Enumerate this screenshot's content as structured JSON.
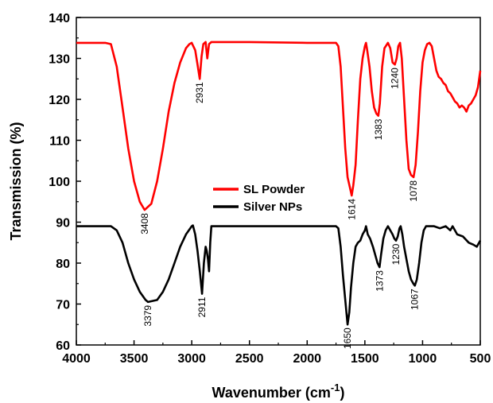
{
  "chart_data": {
    "type": "line",
    "title": "",
    "xlabel": "Wavenumber (cm",
    "xlabel_superscript": "-1",
    "xlabel_close": ")",
    "ylabel": "Transmission (%)",
    "xlim": [
      4000,
      500
    ],
    "ylim": [
      60,
      140
    ],
    "x_ticks": [
      4000,
      3500,
      3000,
      2500,
      2000,
      1500,
      1000,
      500
    ],
    "y_ticks": [
      60,
      70,
      80,
      90,
      100,
      110,
      120,
      130,
      140
    ],
    "grid": false,
    "legend_position": "center",
    "series": [
      {
        "name": "SL Powder",
        "color": "#ff0000",
        "points": [
          [
            4000,
            133.8
          ],
          [
            3750,
            133.8
          ],
          [
            3700,
            133.5
          ],
          [
            3650,
            128
          ],
          [
            3600,
            118
          ],
          [
            3550,
            108
          ],
          [
            3500,
            100
          ],
          [
            3450,
            95
          ],
          [
            3408,
            93
          ],
          [
            3350,
            94.5
          ],
          [
            3300,
            100
          ],
          [
            3250,
            108
          ],
          [
            3200,
            117
          ],
          [
            3150,
            124
          ],
          [
            3100,
            129
          ],
          [
            3050,
            132.5
          ],
          [
            3020,
            133.5
          ],
          [
            3000,
            133.8
          ],
          [
            2970,
            132
          ],
          [
            2950,
            128.5
          ],
          [
            2931,
            125
          ],
          [
            2915,
            130.5
          ],
          [
            2900,
            133.5
          ],
          [
            2880,
            134
          ],
          [
            2865,
            130
          ],
          [
            2850,
            133.5
          ],
          [
            2830,
            134
          ],
          [
            2500,
            134
          ],
          [
            2000,
            133.8
          ],
          [
            1750,
            133.8
          ],
          [
            1730,
            133
          ],
          [
            1710,
            128
          ],
          [
            1690,
            118
          ],
          [
            1670,
            108
          ],
          [
            1650,
            101
          ],
          [
            1630,
            98.5
          ],
          [
            1614,
            96.5
          ],
          [
            1600,
            99
          ],
          [
            1580,
            104
          ],
          [
            1560,
            115
          ],
          [
            1540,
            125
          ],
          [
            1520,
            130
          ],
          [
            1500,
            133
          ],
          [
            1490,
            133.8
          ],
          [
            1480,
            132
          ],
          [
            1460,
            128
          ],
          [
            1440,
            122
          ],
          [
            1420,
            118
          ],
          [
            1400,
            116.5
          ],
          [
            1383,
            116
          ],
          [
            1370,
            119
          ],
          [
            1350,
            128
          ],
          [
            1330,
            132.5
          ],
          [
            1300,
            133.8
          ],
          [
            1280,
            132.5
          ],
          [
            1260,
            129
          ],
          [
            1240,
            128.5
          ],
          [
            1225,
            130
          ],
          [
            1210,
            133
          ],
          [
            1195,
            133.8
          ],
          [
            1180,
            130
          ],
          [
            1160,
            120
          ],
          [
            1140,
            110
          ],
          [
            1120,
            103
          ],
          [
            1100,
            101.5
          ],
          [
            1078,
            101
          ],
          [
            1060,
            104
          ],
          [
            1040,
            112
          ],
          [
            1020,
            122
          ],
          [
            1000,
            129
          ],
          [
            980,
            132
          ],
          [
            960,
            133.5
          ],
          [
            940,
            133.8
          ],
          [
            920,
            133
          ],
          [
            900,
            130
          ],
          [
            880,
            127
          ],
          [
            860,
            125.5
          ],
          [
            840,
            125
          ],
          [
            820,
            124
          ],
          [
            800,
            123.5
          ],
          [
            780,
            122
          ],
          [
            760,
            121.5
          ],
          [
            740,
            120.5
          ],
          [
            720,
            119.5
          ],
          [
            700,
            119
          ],
          [
            680,
            118
          ],
          [
            660,
            118.5
          ],
          [
            640,
            118
          ],
          [
            620,
            117
          ],
          [
            600,
            118.5
          ],
          [
            580,
            119
          ],
          [
            560,
            120
          ],
          [
            540,
            121
          ],
          [
            520,
            123
          ],
          [
            500,
            127
          ]
        ]
      },
      {
        "name": "Silver NPs",
        "color": "#000000",
        "points": [
          [
            4000,
            89
          ],
          [
            3700,
            89
          ],
          [
            3650,
            88
          ],
          [
            3600,
            85
          ],
          [
            3550,
            80
          ],
          [
            3500,
            76
          ],
          [
            3450,
            73
          ],
          [
            3400,
            71
          ],
          [
            3379,
            70.5
          ],
          [
            3300,
            71
          ],
          [
            3250,
            73
          ],
          [
            3200,
            76
          ],
          [
            3150,
            80
          ],
          [
            3100,
            84
          ],
          [
            3050,
            87
          ],
          [
            3000,
            89
          ],
          [
            2990,
            89.2
          ],
          [
            2970,
            87
          ],
          [
            2950,
            83
          ],
          [
            2930,
            78
          ],
          [
            2911,
            72.5
          ],
          [
            2895,
            80
          ],
          [
            2880,
            84
          ],
          [
            2870,
            83
          ],
          [
            2860,
            81
          ],
          [
            2850,
            78
          ],
          [
            2840,
            85
          ],
          [
            2830,
            89
          ],
          [
            2500,
            89
          ],
          [
            2000,
            89
          ],
          [
            1750,
            89
          ],
          [
            1730,
            88.5
          ],
          [
            1710,
            84
          ],
          [
            1690,
            77
          ],
          [
            1670,
            71
          ],
          [
            1650,
            65
          ],
          [
            1635,
            68
          ],
          [
            1620,
            74
          ],
          [
            1600,
            80
          ],
          [
            1580,
            84
          ],
          [
            1560,
            85
          ],
          [
            1540,
            85.5
          ],
          [
            1520,
            87
          ],
          [
            1500,
            88
          ],
          [
            1490,
            89
          ],
          [
            1475,
            87
          ],
          [
            1455,
            86
          ],
          [
            1430,
            84
          ],
          [
            1410,
            82
          ],
          [
            1390,
            80
          ],
          [
            1373,
            79
          ],
          [
            1360,
            82
          ],
          [
            1340,
            86
          ],
          [
            1320,
            88
          ],
          [
            1300,
            89
          ],
          [
            1280,
            88
          ],
          [
            1260,
            87
          ],
          [
            1245,
            86
          ],
          [
            1230,
            85.5
          ],
          [
            1215,
            86.5
          ],
          [
            1200,
            88.5
          ],
          [
            1190,
            89
          ],
          [
            1175,
            87
          ],
          [
            1160,
            84
          ],
          [
            1140,
            81
          ],
          [
            1120,
            78
          ],
          [
            1100,
            76
          ],
          [
            1080,
            75
          ],
          [
            1067,
            74.5
          ],
          [
            1050,
            76
          ],
          [
            1030,
            80
          ],
          [
            1010,
            85
          ],
          [
            990,
            88
          ],
          [
            970,
            89
          ],
          [
            900,
            89
          ],
          [
            850,
            88.5
          ],
          [
            800,
            89
          ],
          [
            760,
            88
          ],
          [
            740,
            89
          ],
          [
            700,
            87
          ],
          [
            650,
            86.5
          ],
          [
            600,
            85
          ],
          [
            560,
            84.5
          ],
          [
            530,
            84
          ],
          [
            500,
            85.5
          ]
        ]
      }
    ],
    "annotations": [
      {
        "text": "3408",
        "series": "SL Powder",
        "x": 3408,
        "y": 93,
        "rotate": -90,
        "anchor": "below"
      },
      {
        "text": "2931",
        "series": "SL Powder",
        "x": 2931,
        "y": 125,
        "rotate": -90,
        "anchor": "below"
      },
      {
        "text": "1614",
        "series": "SL Powder",
        "x": 1614,
        "y": 96.5,
        "rotate": -90,
        "anchor": "below"
      },
      {
        "text": "1383",
        "series": "SL Powder",
        "x": 1383,
        "y": 116,
        "rotate": -90,
        "anchor": "below"
      },
      {
        "text": "1240",
        "series": "SL Powder",
        "x": 1240,
        "y": 128.5,
        "rotate": -90,
        "anchor": "below"
      },
      {
        "text": "1078",
        "series": "SL Powder",
        "x": 1078,
        "y": 101,
        "rotate": -90,
        "anchor": "below"
      },
      {
        "text": "3379",
        "series": "Silver NPs",
        "x": 3379,
        "y": 70.5,
        "rotate": -90,
        "anchor": "below"
      },
      {
        "text": "2911",
        "series": "Silver NPs",
        "x": 2911,
        "y": 72.5,
        "rotate": -90,
        "anchor": "below"
      },
      {
        "text": "1650",
        "series": "Silver NPs",
        "x": 1650,
        "y": 65,
        "rotate": -90,
        "anchor": "below"
      },
      {
        "text": "1373",
        "series": "Silver NPs",
        "x": 1373,
        "y": 79,
        "rotate": -90,
        "anchor": "below"
      },
      {
        "text": "1230",
        "series": "Silver NPs",
        "x": 1230,
        "y": 85.5,
        "rotate": -90,
        "anchor": "below"
      },
      {
        "text": "1067",
        "series": "Silver NPs",
        "x": 1067,
        "y": 74.5,
        "rotate": -90,
        "anchor": "below"
      }
    ]
  }
}
